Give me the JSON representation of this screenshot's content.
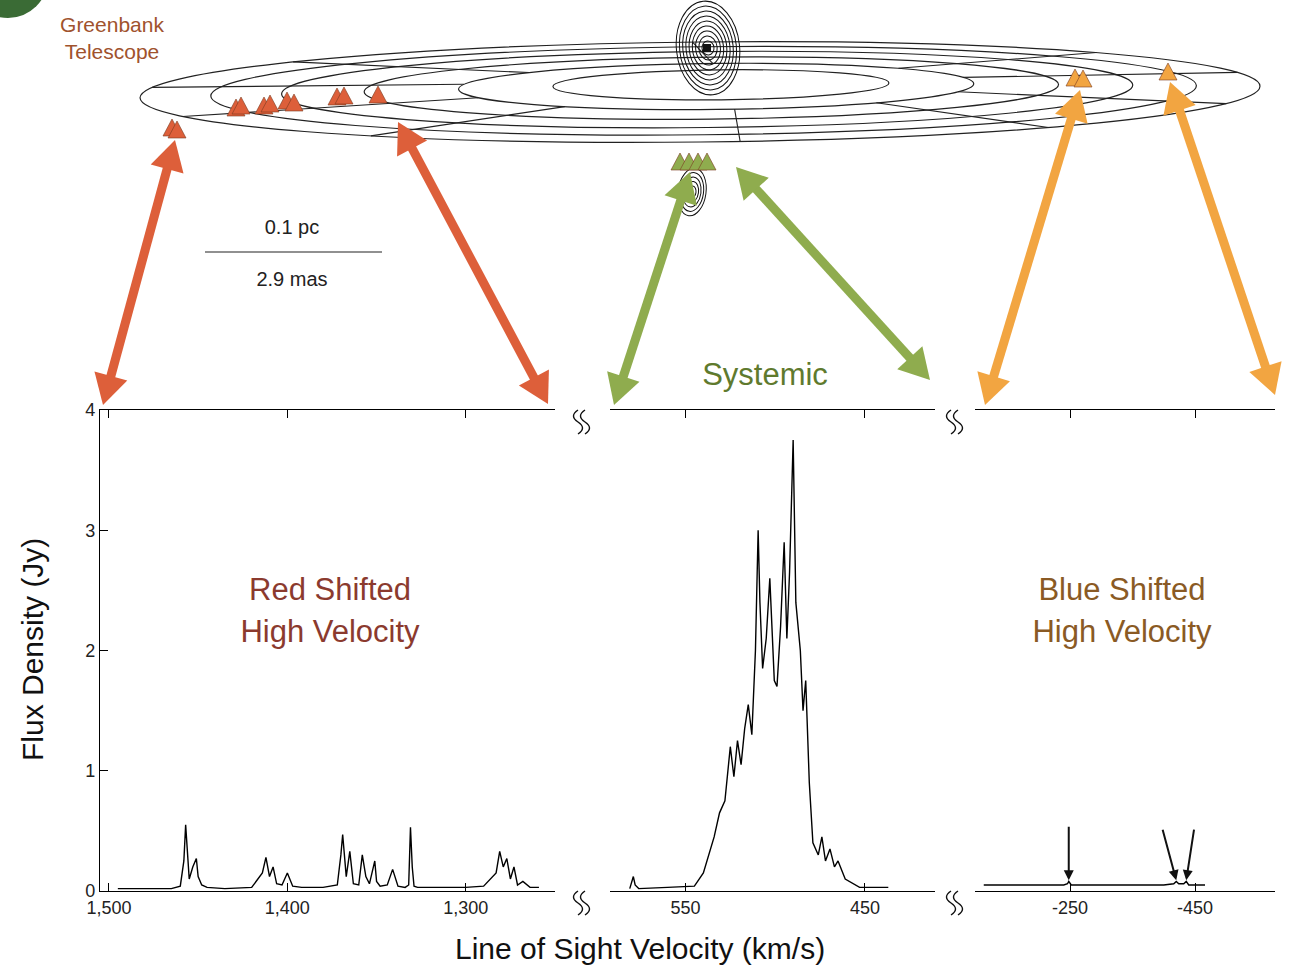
{
  "chart_data": {
    "type": "line",
    "x_label": "Line of Sight Velocity (km/s)",
    "y_label": "Flux Density (Jy)",
    "ylim": [
      0,
      4
    ],
    "yticks": [
      0,
      1,
      2,
      3,
      4
    ],
    "color": "#000000",
    "panels": [
      {
        "label": [
          "Red Shifted",
          "High Velocity"
        ],
        "xlim": [
          1505,
          1250
        ],
        "xticks": [
          {
            "value": 1500,
            "label": "1,500"
          },
          {
            "value": 1400,
            "label": "1,400"
          },
          {
            "value": 1300,
            "label": "1,300"
          }
        ],
        "x": [
          1495,
          1480,
          1465,
          1460,
          1458,
          1457,
          1456,
          1455,
          1453,
          1451,
          1450,
          1448,
          1445,
          1435,
          1420,
          1414,
          1412,
          1410,
          1408,
          1406,
          1403,
          1400,
          1397,
          1392,
          1380,
          1372,
          1370,
          1369,
          1367,
          1365,
          1363,
          1360,
          1358,
          1356,
          1354,
          1351,
          1350,
          1348,
          1344,
          1341,
          1338,
          1334,
          1332,
          1331,
          1330,
          1329,
          1327,
          1320,
          1300,
          1290,
          1283,
          1281,
          1279,
          1277,
          1275,
          1273,
          1271,
          1268,
          1264,
          1259
        ],
        "values": [
          0.02,
          0.02,
          0.02,
          0.04,
          0.25,
          0.55,
          0.3,
          0.1,
          0.2,
          0.27,
          0.12,
          0.05,
          0.03,
          0.02,
          0.03,
          0.15,
          0.28,
          0.12,
          0.2,
          0.06,
          0.05,
          0.15,
          0.04,
          0.03,
          0.03,
          0.05,
          0.3,
          0.47,
          0.12,
          0.33,
          0.06,
          0.05,
          0.3,
          0.12,
          0.06,
          0.25,
          0.08,
          0.04,
          0.05,
          0.18,
          0.04,
          0.03,
          0.05,
          0.53,
          0.2,
          0.04,
          0.03,
          0.03,
          0.03,
          0.04,
          0.15,
          0.33,
          0.2,
          0.27,
          0.1,
          0.2,
          0.05,
          0.08,
          0.03,
          0.03
        ]
      },
      {
        "label": [
          "Systemic"
        ],
        "xlim": [
          592,
          411
        ],
        "xticks": [
          550,
          450
        ],
        "x": [
          581,
          579,
          578,
          576,
          560,
          545,
          540,
          537,
          534,
          531,
          528,
          525,
          523,
          521,
          519,
          517,
          515,
          513,
          511,
          509.5,
          508.5,
          507,
          505,
          503,
          502,
          500.5,
          499,
          497,
          495,
          493.5,
          492,
          490,
          488.5,
          486,
          484.5,
          483,
          481,
          479,
          476,
          474,
          472,
          469.5,
          467,
          465,
          461,
          453,
          437
        ],
        "values": [
          0.02,
          0.12,
          0.05,
          0.02,
          0.03,
          0.04,
          0.15,
          0.3,
          0.45,
          0.65,
          0.75,
          1.2,
          0.95,
          1.25,
          1.05,
          1.35,
          1.55,
          1.3,
          2.0,
          3.0,
          2.4,
          1.85,
          2.1,
          2.6,
          2.2,
          1.75,
          1.7,
          2.2,
          2.9,
          2.1,
          2.65,
          3.75,
          2.4,
          2.0,
          1.5,
          1.75,
          0.9,
          0.4,
          0.3,
          0.45,
          0.25,
          0.35,
          0.2,
          0.25,
          0.1,
          0.03,
          0.03
        ]
      },
      {
        "label": [
          "Blue Shifted",
          "High Velocity"
        ],
        "xlim": [
          -98,
          -578
        ],
        "xticks": [
          -250,
          -450
        ],
        "x": [
          -112,
          -150,
          -200,
          -240,
          -246,
          -248,
          -252,
          -300,
          -350,
          -400,
          -416,
          -420,
          -424,
          -432,
          -436,
          -440,
          -466
        ],
        "values": [
          0.05,
          0.05,
          0.05,
          0.05,
          0.06,
          0.08,
          0.05,
          0.05,
          0.05,
          0.05,
          0.06,
          0.08,
          0.06,
          0.06,
          0.08,
          0.05,
          0.05
        ],
        "marked_velocities": [
          -248,
          -420,
          -436
        ]
      }
    ]
  },
  "diagram": {
    "logo_label": [
      "Greenbank",
      "Telescope"
    ],
    "scale_bar": {
      "top_label": "0.1 pc",
      "bottom_label": "2.9 mas"
    }
  }
}
